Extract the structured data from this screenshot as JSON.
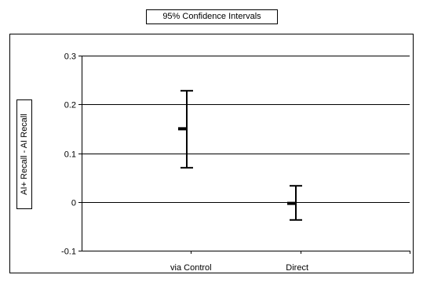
{
  "chart_data": {
    "type": "errorbar",
    "title": "95% Confidence Intervals",
    "xlabel": "",
    "ylabel": "AI+ Recall - AI Recall",
    "categories": [
      "via Control",
      "Direct"
    ],
    "mean": [
      0.15,
      -0.003
    ],
    "lower": [
      0.07,
      -0.037
    ],
    "upper": [
      0.228,
      0.033
    ],
    "ylim": [
      -0.1,
      0.3
    ],
    "yticks": [
      -0.1,
      0,
      0.1,
      0.2,
      0.3
    ],
    "ytick_labels": [
      "-0.1",
      "0",
      "0.1",
      "0.2",
      "0.3"
    ],
    "grid": true,
    "legend": "none"
  },
  "colors": {
    "line": "#000000",
    "background": "#ffffff"
  }
}
